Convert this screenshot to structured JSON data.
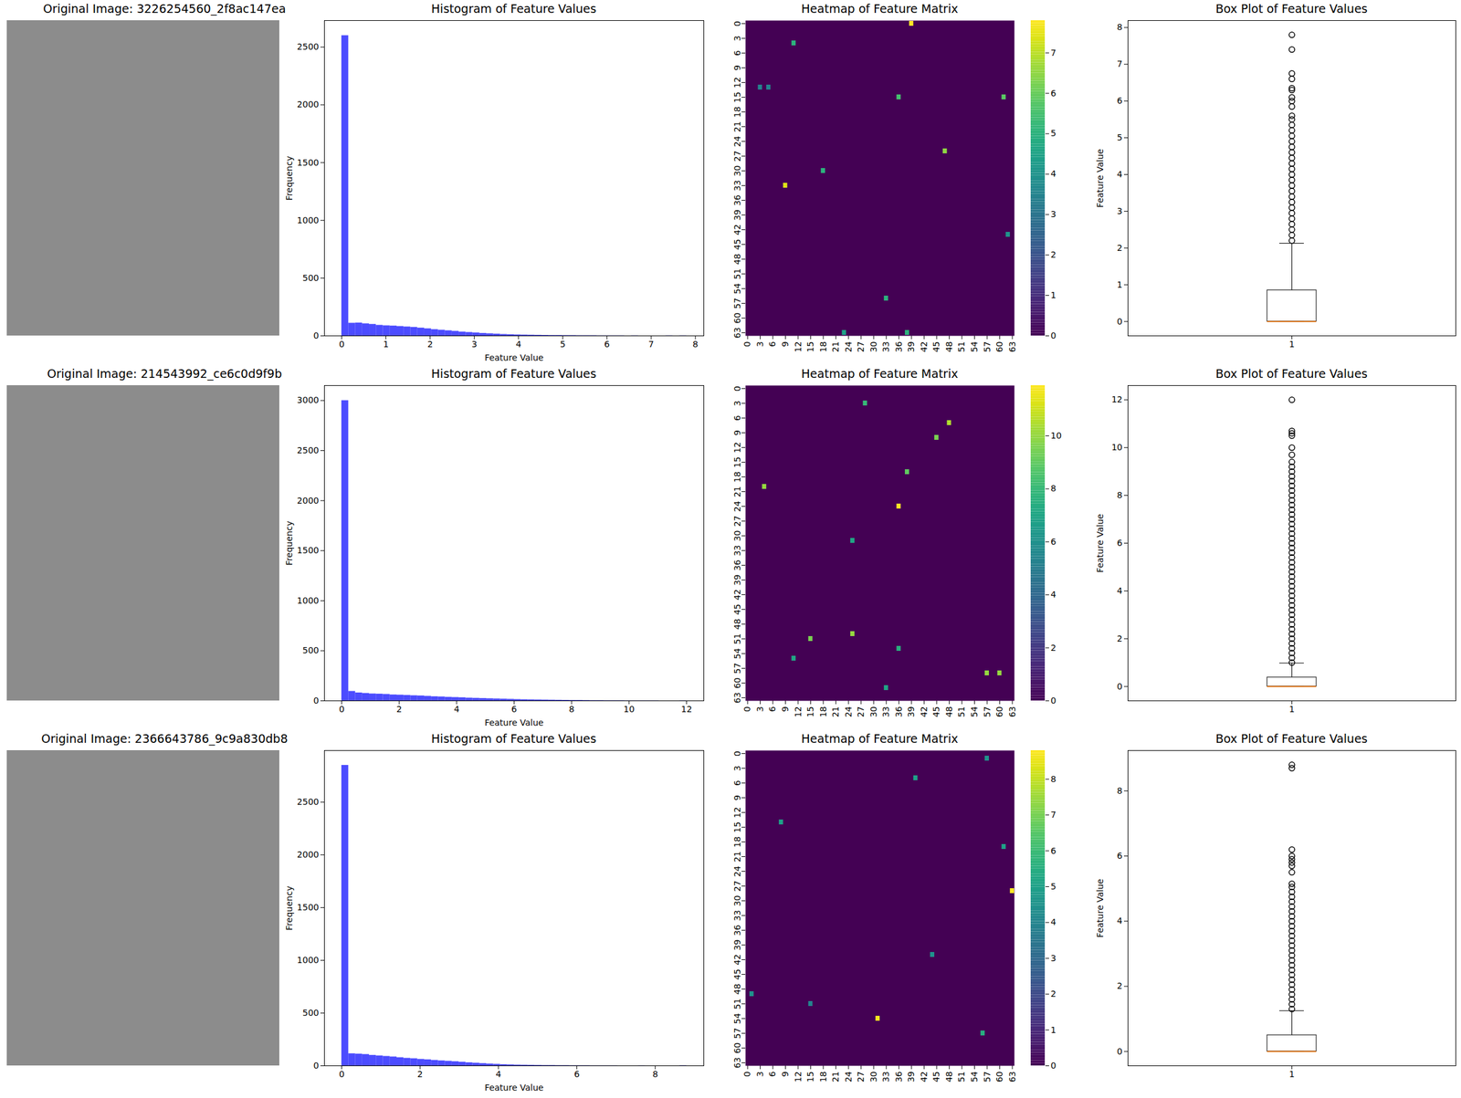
{
  "chart_data": [
    {
      "type": "image",
      "title": "Original Image: 3226254560_2f8ac147ea"
    },
    {
      "type": "histogram",
      "title": "Histogram of Feature Values",
      "x_label": "Feature Value",
      "y_label": "Frequency",
      "color": "blue",
      "bins": [
        0,
        0.156,
        0.312,
        0.468,
        0.624,
        0.78,
        0.936,
        1.092,
        1.248,
        1.404,
        1.56,
        1.716,
        1.872,
        2.028,
        2.184,
        2.34,
        2.496,
        2.652,
        2.808,
        2.964,
        3.12,
        3.276,
        3.432,
        3.588,
        3.744,
        3.9,
        4.056,
        4.212,
        4.368,
        4.524,
        4.68,
        4.836,
        4.992,
        5.148,
        5.304,
        5.46,
        5.616,
        5.772,
        5.928,
        6.084,
        6.24,
        6.396,
        6.552,
        6.708,
        6.864,
        7.02,
        7.176,
        7.332,
        7.488,
        7.644,
        7.8
      ],
      "counts": [
        2600,
        110,
        112,
        105,
        100,
        92,
        88,
        86,
        82,
        78,
        74,
        68,
        62,
        55,
        50,
        45,
        40,
        34,
        30,
        26,
        22,
        19,
        16,
        13,
        11,
        9,
        8,
        7,
        6,
        5,
        4,
        4,
        3,
        3,
        2,
        2,
        2,
        1,
        1,
        1,
        1,
        0,
        1,
        0,
        0,
        0,
        0,
        1,
        0,
        1
      ],
      "xlim": [
        -0.39,
        8.19
      ],
      "xticks": [
        0,
        1,
        2,
        3,
        4,
        5,
        6,
        7,
        8
      ],
      "ylim": [
        0,
        2730
      ],
      "yticks": [
        0,
        500,
        1000,
        1500,
        2000,
        2500
      ]
    },
    {
      "type": "heatmap",
      "title": "Heatmap of Feature Matrix",
      "color": "viridis",
      "size": [
        64,
        64
      ],
      "xticks": [
        0,
        3,
        6,
        9,
        12,
        15,
        18,
        21,
        24,
        27,
        30,
        33,
        36,
        39,
        42,
        45,
        48,
        51,
        54,
        57,
        60,
        63
      ],
      "yticks": [
        0,
        3,
        6,
        9,
        12,
        15,
        18,
        21,
        24,
        27,
        30,
        33,
        36,
        39,
        42,
        45,
        48,
        51,
        54,
        57,
        60,
        63
      ],
      "cells": [
        [
          0,
          39,
          7.8
        ],
        [
          33,
          9,
          7.4
        ],
        [
          15,
          61,
          5.8
        ],
        [
          26,
          47,
          6.5
        ],
        [
          15,
          36,
          5.5
        ],
        [
          30,
          18,
          5
        ],
        [
          4,
          11,
          5
        ],
        [
          56,
          33,
          5
        ],
        [
          63,
          38,
          5
        ],
        [
          63,
          23,
          4.5
        ],
        [
          13,
          3,
          3.5
        ],
        [
          13,
          5,
          3.5
        ],
        [
          43,
          62,
          4
        ]
      ],
      "colorbar": {
        "range": [
          0,
          7.8
        ],
        "ticks": [
          0,
          1,
          2,
          3,
          4,
          5,
          6,
          7
        ]
      }
    },
    {
      "type": "box",
      "title": "Box Plot of Feature Values",
      "y_label": "Feature Value",
      "positions": [
        1
      ],
      "xlim": [
        0.5,
        1.5
      ],
      "xticks": [
        1
      ],
      "ylim": [
        -0.39,
        8.19
      ],
      "yticks": [
        0,
        1,
        2,
        3,
        4,
        5,
        6,
        7,
        8
      ],
      "whisker_low": 0,
      "q1": 0,
      "median": 0,
      "q3": 0.85,
      "whisker_high": 2.13,
      "outliers": [
        2.2,
        2.35,
        2.5,
        2.65,
        2.8,
        2.95,
        3.1,
        3.25,
        3.4,
        3.55,
        3.7,
        3.85,
        4.0,
        4.15,
        4.3,
        4.45,
        4.6,
        4.75,
        4.9,
        5.05,
        5.2,
        5.35,
        5.5,
        5.6,
        5.85,
        6.0,
        6.1,
        6.3,
        6.35,
        6.6,
        6.75,
        7.4,
        7.8
      ]
    },
    {
      "type": "image",
      "title": "Original Image: 214543992_ce6c0d9f9b"
    },
    {
      "type": "histogram",
      "title": "Histogram of Feature Values",
      "x_label": "Feature Value",
      "y_label": "Frequency",
      "color": "blue",
      "bins": [
        0,
        0.24,
        0.48,
        0.72,
        0.96,
        1.2,
        1.44,
        1.68,
        1.92,
        2.16,
        2.4,
        2.64,
        2.88,
        3.12,
        3.36,
        3.6,
        3.84,
        4.08,
        4.32,
        4.56,
        4.8,
        5.04,
        5.28,
        5.52,
        5.76,
        6,
        6.24,
        6.48,
        6.72,
        6.96,
        7.2,
        7.44,
        7.68,
        7.92,
        8.16,
        8.4,
        8.64,
        8.88,
        9.12,
        9.36,
        9.6,
        9.84,
        10.08,
        10.32,
        10.56,
        10.8,
        11.04,
        11.28,
        11.52,
        11.76,
        12
      ],
      "counts": [
        3000,
        95,
        80,
        75,
        70,
        68,
        65,
        60,
        58,
        55,
        52,
        50,
        46,
        42,
        40,
        36,
        34,
        32,
        28,
        26,
        24,
        22,
        20,
        18,
        16,
        14,
        12,
        11,
        10,
        9,
        8,
        7,
        6,
        5,
        5,
        4,
        3,
        3,
        2,
        2,
        2,
        1,
        1,
        1,
        1,
        1,
        0,
        0,
        0,
        1
      ],
      "xlim": [
        -0.6,
        12.6
      ],
      "xticks": [
        0,
        2,
        4,
        6,
        8,
        10,
        12
      ],
      "ylim": [
        0,
        3150
      ],
      "yticks": [
        0,
        500,
        1000,
        1500,
        2000,
        2500,
        3000
      ]
    },
    {
      "type": "heatmap",
      "title": "Heatmap of Feature Matrix",
      "color": "viridis",
      "size": [
        64,
        64
      ],
      "xticks": [
        0,
        3,
        6,
        9,
        12,
        15,
        18,
        21,
        24,
        27,
        30,
        33,
        36,
        39,
        42,
        45,
        48,
        51,
        54,
        57,
        60,
        63
      ],
      "yticks": [
        0,
        3,
        6,
        9,
        12,
        15,
        18,
        21,
        24,
        27,
        30,
        33,
        36,
        39,
        42,
        45,
        48,
        51,
        54,
        57,
        60,
        63
      ],
      "cells": [
        [
          7,
          48,
          10.5
        ],
        [
          20,
          4,
          10
        ],
        [
          24,
          36,
          11.9
        ],
        [
          50,
          25,
          10
        ],
        [
          51,
          15,
          9.5
        ],
        [
          17,
          38,
          9
        ],
        [
          58,
          57,
          10
        ],
        [
          58,
          60,
          10
        ],
        [
          10,
          45,
          9.5
        ],
        [
          3,
          28,
          8
        ],
        [
          31,
          25,
          7
        ],
        [
          53,
          36,
          7.5
        ],
        [
          55,
          11,
          7
        ],
        [
          61,
          33,
          7
        ]
      ],
      "colorbar": {
        "range": [
          0,
          11.9
        ],
        "ticks": [
          0,
          2,
          4,
          6,
          8,
          10
        ]
      }
    },
    {
      "type": "box",
      "title": "Box Plot of Feature Values",
      "y_label": "Feature Value",
      "positions": [
        1
      ],
      "xlim": [
        0.5,
        1.5
      ],
      "xticks": [
        1
      ],
      "ylim": [
        -0.6,
        12.6
      ],
      "yticks": [
        0,
        2,
        4,
        6,
        8,
        10,
        12
      ],
      "whisker_low": 0,
      "q1": 0,
      "median": 0,
      "q3": 0.38,
      "whisker_high": 0.98,
      "outliers": [
        1.0,
        1.2,
        1.4,
        1.6,
        1.8,
        2.0,
        2.2,
        2.4,
        2.6,
        2.8,
        3.0,
        3.2,
        3.4,
        3.6,
        3.8,
        4.0,
        4.2,
        4.4,
        4.6,
        4.8,
        5.0,
        5.2,
        5.4,
        5.6,
        5.8,
        6.0,
        6.2,
        6.4,
        6.6,
        6.8,
        7.0,
        7.2,
        7.4,
        7.6,
        7.8,
        8.0,
        8.2,
        8.4,
        8.6,
        8.8,
        9.0,
        9.2,
        9.4,
        9.7,
        10.0,
        10.5,
        10.6,
        10.7,
        12.0
      ]
    },
    {
      "type": "image",
      "title": "Original Image: 2366643786_9c9a830db8"
    },
    {
      "type": "histogram",
      "title": "Histogram of Feature Values",
      "x_label": "Feature Value",
      "y_label": "Frequency",
      "color": "blue",
      "bins": [
        0,
        0.176,
        0.352,
        0.528,
        0.704,
        0.88,
        1.056,
        1.232,
        1.408,
        1.584,
        1.76,
        1.936,
        2.112,
        2.288,
        2.464,
        2.64,
        2.816,
        2.992,
        3.168,
        3.344,
        3.52,
        3.696,
        3.872,
        4.048,
        4.224,
        4.4,
        4.576,
        4.752,
        4.928,
        5.104,
        5.28,
        5.456,
        5.632,
        5.808,
        5.984,
        6.16,
        6.336,
        6.512,
        6.688,
        6.864,
        7.04,
        7.216,
        7.392,
        7.568,
        7.744,
        7.92,
        8.096,
        8.272,
        8.448,
        8.624,
        8.8
      ],
      "counts": [
        2850,
        115,
        112,
        108,
        100,
        95,
        90,
        85,
        78,
        72,
        68,
        62,
        58,
        52,
        48,
        44,
        40,
        35,
        30,
        26,
        22,
        18,
        15,
        12,
        10,
        8,
        7,
        6,
        5,
        4,
        4,
        3,
        3,
        2,
        2,
        2,
        1,
        1,
        1,
        1,
        0,
        0,
        0,
        1,
        0,
        0,
        0,
        0,
        0,
        2
      ],
      "xlim": [
        -0.44,
        9.24
      ],
      "xticks": [
        0,
        2,
        4,
        6,
        8
      ],
      "ylim": [
        0,
        2990
      ],
      "yticks": [
        0,
        500,
        1000,
        1500,
        2000,
        2500
      ]
    },
    {
      "type": "heatmap",
      "title": "Heatmap of Feature Matrix",
      "color": "viridis",
      "size": [
        64,
        64
      ],
      "xticks": [
        0,
        3,
        6,
        9,
        12,
        15,
        18,
        21,
        24,
        27,
        30,
        33,
        36,
        39,
        42,
        45,
        48,
        51,
        54,
        57,
        60,
        63
      ],
      "yticks": [
        0,
        3,
        6,
        9,
        12,
        15,
        18,
        21,
        24,
        27,
        30,
        33,
        36,
        39,
        42,
        45,
        48,
        51,
        54,
        57,
        60,
        63
      ],
      "cells": [
        [
          28,
          63,
          8.8
        ],
        [
          54,
          31,
          8.7
        ],
        [
          57,
          56,
          5.5
        ],
        [
          14,
          8,
          5
        ],
        [
          5,
          40,
          5
        ],
        [
          41,
          44,
          4.5
        ],
        [
          19,
          61,
          5
        ],
        [
          1,
          57,
          4.5
        ],
        [
          51,
          15,
          4
        ],
        [
          49,
          1,
          4.5
        ]
      ],
      "colorbar": {
        "range": [
          0,
          8.8
        ],
        "ticks": [
          0,
          1,
          2,
          3,
          4,
          5,
          6,
          7,
          8
        ]
      }
    },
    {
      "type": "box",
      "title": "Box Plot of Feature Values",
      "y_label": "Feature Value",
      "positions": [
        1
      ],
      "xlim": [
        0.5,
        1.5
      ],
      "xticks": [
        1
      ],
      "ylim": [
        -0.44,
        9.24
      ],
      "yticks": [
        0,
        2,
        4,
        6,
        8
      ],
      "whisker_low": 0,
      "q1": 0,
      "median": 0,
      "q3": 0.5,
      "whisker_high": 1.25,
      "outliers": [
        1.3,
        1.45,
        1.6,
        1.75,
        1.9,
        2.05,
        2.2,
        2.35,
        2.5,
        2.65,
        2.8,
        2.95,
        3.1,
        3.25,
        3.4,
        3.55,
        3.7,
        3.85,
        4.0,
        4.15,
        4.3,
        4.45,
        4.6,
        4.75,
        4.9,
        5.05,
        5.15,
        5.5,
        5.7,
        5.8,
        5.9,
        6.0,
        6.2,
        8.7,
        8.8
      ]
    }
  ]
}
